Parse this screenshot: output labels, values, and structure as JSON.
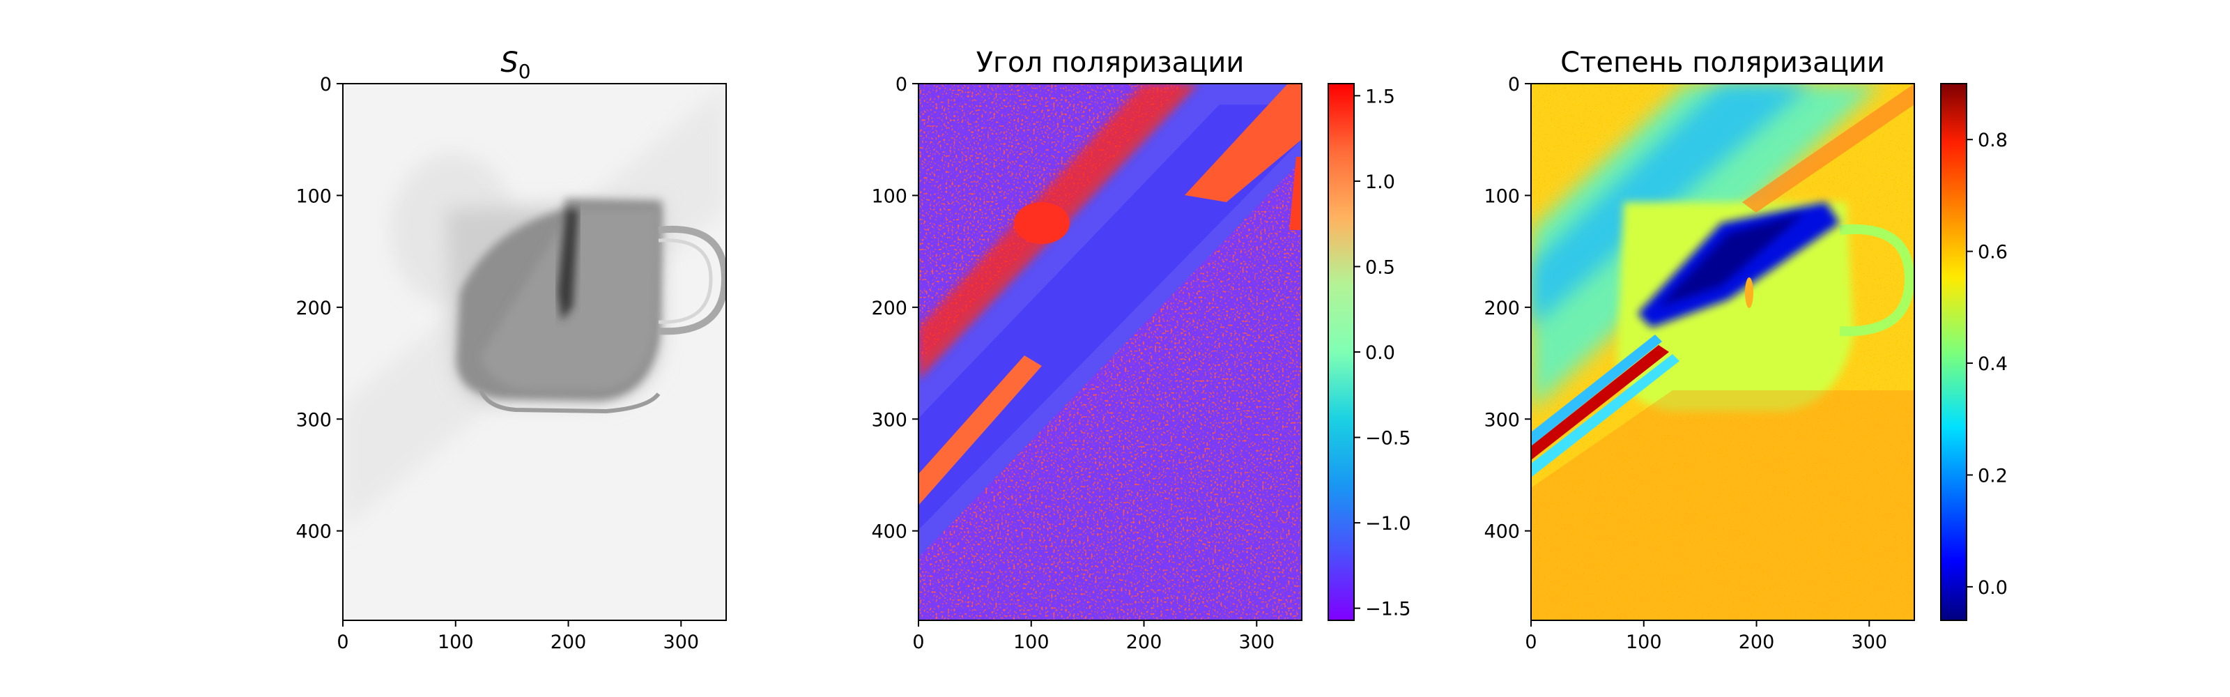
{
  "chart_data": [
    {
      "type": "heatmap",
      "title": "S",
      "title_subscript": "0",
      "colormap": "gray",
      "xlim": [
        0,
        340
      ],
      "ylim": [
        480,
        0
      ],
      "xticks": [
        0,
        100,
        200,
        300
      ],
      "yticks": [
        0,
        100,
        200,
        300,
        400
      ],
      "xtick_labels": [
        "0",
        "100",
        "200",
        "300"
      ],
      "ytick_labels": [
        "0",
        "100",
        "200",
        "300",
        "400"
      ],
      "xlabel": "",
      "ylabel": ""
    },
    {
      "type": "heatmap",
      "title": "Угол поляризации",
      "colormap": "rainbow",
      "xlim": [
        0,
        340
      ],
      "ylim": [
        480,
        0
      ],
      "xticks": [
        0,
        100,
        200,
        300
      ],
      "yticks": [
        0,
        100,
        200,
        300,
        400
      ],
      "xtick_labels": [
        "0",
        "100",
        "200",
        "300"
      ],
      "ytick_labels": [
        "0",
        "100",
        "200",
        "300",
        "400"
      ],
      "colorbar": {
        "range": [
          -1.5708,
          1.5708
        ],
        "ticks": [
          1.5,
          1.0,
          0.5,
          0.0,
          -0.5,
          -1.0,
          -1.5
        ],
        "tick_labels": [
          "1.5",
          "1.0",
          "0.5",
          "0.0",
          "−0.5",
          "−1.0",
          "−1.5"
        ]
      },
      "xlabel": "",
      "ylabel": ""
    },
    {
      "type": "heatmap",
      "title": "Степень поляризации",
      "colormap": "jet",
      "xlim": [
        0,
        340
      ],
      "ylim": [
        480,
        0
      ],
      "xticks": [
        0,
        100,
        200,
        300
      ],
      "yticks": [
        0,
        100,
        200,
        300,
        400
      ],
      "xtick_labels": [
        "0",
        "100",
        "200",
        "300"
      ],
      "ytick_labels": [
        "0",
        "100",
        "200",
        "300",
        "400"
      ],
      "colorbar": {
        "range": [
          -0.06,
          0.9
        ],
        "ticks": [
          0.8,
          0.6,
          0.4,
          0.2,
          0.0
        ],
        "tick_labels": [
          "0.8",
          "0.6",
          "0.4",
          "0.2",
          "0.0"
        ]
      },
      "xlabel": "",
      "ylabel": ""
    }
  ]
}
